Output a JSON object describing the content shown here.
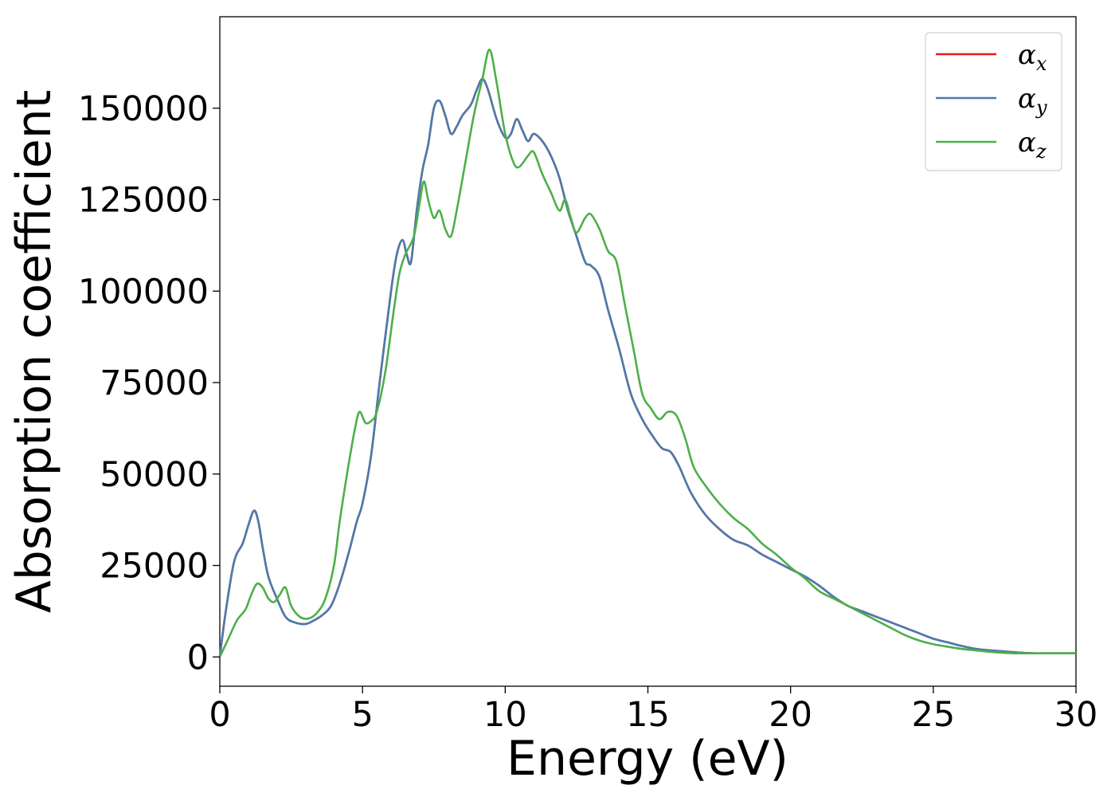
{
  "chart_data": {
    "type": "line",
    "title": "",
    "xlabel": "Energy (eV)",
    "ylabel": "Absorption coefficient",
    "xlim": [
      0,
      30
    ],
    "ylim": [
      -8000,
      175000
    ],
    "xticks": [
      0,
      5,
      10,
      15,
      20,
      25,
      30
    ],
    "yticks": [
      0,
      25000,
      50000,
      75000,
      100000,
      125000,
      150000
    ],
    "xtick_labels": [
      "0",
      "5",
      "10",
      "15",
      "20",
      "25",
      "30"
    ],
    "ytick_labels": [
      "0",
      "25000",
      "50000",
      "75000",
      "100000",
      "125000",
      "150000"
    ],
    "grid": false,
    "legend_position": "top-right",
    "series": [
      {
        "name": "α",
        "subscript": "x",
        "color": "#e41a1c",
        "x": [
          0,
          0.2,
          0.5,
          0.8,
          1.0,
          1.2,
          1.35,
          1.5,
          1.7,
          2.0,
          2.3,
          2.6,
          3.0,
          3.3,
          3.6,
          3.9,
          4.2,
          4.5,
          4.8,
          5.0,
          5.3,
          5.6,
          6.0,
          6.2,
          6.4,
          6.55,
          6.7,
          6.9,
          7.1,
          7.3,
          7.5,
          7.7,
          7.9,
          8.1,
          8.3,
          8.5,
          8.8,
          9.0,
          9.2,
          9.4,
          9.7,
          10.0,
          10.2,
          10.4,
          10.6,
          10.8,
          11.0,
          11.3,
          11.6,
          11.9,
          12.2,
          12.5,
          12.8,
          13.0,
          13.3,
          13.6,
          14.0,
          14.4,
          14.8,
          15.2,
          15.5,
          15.8,
          16.1,
          16.5,
          17.0,
          17.5,
          18.0,
          18.5,
          19.0,
          19.5,
          20.0,
          20.5,
          21.0,
          21.5,
          22.0,
          22.5,
          23.0,
          23.5,
          24.0,
          24.5,
          25.0,
          25.5,
          26.0,
          26.5,
          27.0,
          27.5,
          28.0,
          28.5,
          29.0,
          29.5,
          30.0
        ],
        "values": [
          0,
          12000,
          26000,
          31000,
          36000,
          40000,
          37000,
          30000,
          22000,
          16000,
          11000,
          9500,
          9000,
          10000,
          11500,
          14000,
          20000,
          28000,
          37000,
          42000,
          55000,
          75000,
          100000,
          110000,
          114000,
          110000,
          108000,
          122000,
          133000,
          140000,
          150000,
          152000,
          148000,
          143000,
          145000,
          148000,
          151000,
          155000,
          158000,
          155000,
          147000,
          142000,
          143000,
          147000,
          144000,
          141000,
          143000,
          141000,
          137000,
          131000,
          122000,
          115000,
          108000,
          107000,
          104000,
          95000,
          84000,
          72000,
          65000,
          60000,
          57000,
          56000,
          52000,
          45000,
          39000,
          35000,
          32000,
          30500,
          28000,
          26000,
          24000,
          22000,
          19500,
          16500,
          14000,
          12500,
          11000,
          9500,
          8000,
          6500,
          5000,
          4000,
          3000,
          2200,
          1800,
          1500,
          1200,
          1000,
          1000,
          1000,
          1000
        ]
      },
      {
        "name": "α",
        "subscript": "y",
        "color": "#4a7bad",
        "x": [
          0,
          0.2,
          0.5,
          0.8,
          1.0,
          1.2,
          1.35,
          1.5,
          1.7,
          2.0,
          2.3,
          2.6,
          3.0,
          3.3,
          3.6,
          3.9,
          4.2,
          4.5,
          4.8,
          5.0,
          5.3,
          5.6,
          6.0,
          6.2,
          6.4,
          6.55,
          6.7,
          6.9,
          7.1,
          7.3,
          7.5,
          7.7,
          7.9,
          8.1,
          8.3,
          8.5,
          8.8,
          9.0,
          9.2,
          9.4,
          9.7,
          10.0,
          10.2,
          10.4,
          10.6,
          10.8,
          11.0,
          11.3,
          11.6,
          11.9,
          12.2,
          12.5,
          12.8,
          13.0,
          13.3,
          13.6,
          14.0,
          14.4,
          14.8,
          15.2,
          15.5,
          15.8,
          16.1,
          16.5,
          17.0,
          17.5,
          18.0,
          18.5,
          19.0,
          19.5,
          20.0,
          20.5,
          21.0,
          21.5,
          22.0,
          22.5,
          23.0,
          23.5,
          24.0,
          24.5,
          25.0,
          25.5,
          26.0,
          26.5,
          27.0,
          27.5,
          28.0,
          28.5,
          29.0,
          29.5,
          30.0
        ],
        "values": [
          0,
          12000,
          26000,
          31000,
          36000,
          40000,
          37000,
          30000,
          22000,
          16000,
          11000,
          9500,
          9000,
          10000,
          11500,
          14000,
          20000,
          28000,
          37000,
          42000,
          55000,
          75000,
          100000,
          110000,
          114000,
          110000,
          108000,
          122000,
          133000,
          140000,
          150000,
          152000,
          148000,
          143000,
          145000,
          148000,
          151000,
          155000,
          158000,
          155000,
          147000,
          142000,
          143000,
          147000,
          144000,
          141000,
          143000,
          141000,
          137000,
          131000,
          122000,
          115000,
          108000,
          107000,
          104000,
          95000,
          84000,
          72000,
          65000,
          60000,
          57000,
          56000,
          52000,
          45000,
          39000,
          35000,
          32000,
          30500,
          28000,
          26000,
          24000,
          22000,
          19500,
          16500,
          14000,
          12500,
          11000,
          9500,
          8000,
          6500,
          5000,
          4000,
          3000,
          2200,
          1800,
          1500,
          1200,
          1000,
          1000,
          1000,
          1000
        ]
      },
      {
        "name": "α",
        "subscript": "z",
        "color": "#4daf4a",
        "x": [
          0,
          0.3,
          0.6,
          0.9,
          1.1,
          1.3,
          1.5,
          1.7,
          1.9,
          2.1,
          2.3,
          2.5,
          2.8,
          3.1,
          3.4,
          3.7,
          4.0,
          4.2,
          4.5,
          4.75,
          4.9,
          5.1,
          5.3,
          5.5,
          5.8,
          6.1,
          6.3,
          6.5,
          6.8,
          7.0,
          7.15,
          7.3,
          7.5,
          7.7,
          7.9,
          8.1,
          8.3,
          8.6,
          8.9,
          9.2,
          9.45,
          9.7,
          10.0,
          10.3,
          10.5,
          10.8,
          11.0,
          11.3,
          11.6,
          11.9,
          12.1,
          12.3,
          12.5,
          12.8,
          13.0,
          13.3,
          13.6,
          13.9,
          14.2,
          14.5,
          14.8,
          15.1,
          15.4,
          15.7,
          16.0,
          16.3,
          16.6,
          17.0,
          17.5,
          18.0,
          18.5,
          19.0,
          19.5,
          20.0,
          20.5,
          21.0,
          21.5,
          22.0,
          22.5,
          23.0,
          23.5,
          24.0,
          24.5,
          25.0,
          25.5,
          26.0,
          26.5,
          27.0,
          27.5,
          28.0,
          28.5,
          29.0,
          29.5,
          30.0
        ],
        "values": [
          0,
          5000,
          10000,
          13000,
          17000,
          20000,
          19000,
          16000,
          15000,
          17000,
          19000,
          14000,
          11000,
          10500,
          12000,
          16000,
          25000,
          37000,
          52000,
          63000,
          67000,
          64000,
          64500,
          67000,
          78000,
          95000,
          105000,
          110000,
          115000,
          124000,
          130000,
          125000,
          120000,
          122000,
          117000,
          115000,
          122000,
          135000,
          148000,
          158000,
          166000,
          157000,
          143000,
          135000,
          134000,
          137000,
          138000,
          132000,
          127000,
          122000,
          125000,
          120000,
          116000,
          120000,
          121000,
          117000,
          111000,
          108000,
          96000,
          84000,
          72000,
          68000,
          65000,
          67000,
          66000,
          60000,
          52000,
          47000,
          42000,
          38000,
          35000,
          31000,
          28000,
          24500,
          21500,
          18000,
          16000,
          14000,
          12000,
          10000,
          8000,
          6000,
          4500,
          3500,
          2800,
          2200,
          1800,
          1400,
          1100,
          1000,
          1000,
          1000,
          1000,
          1000
        ]
      }
    ]
  }
}
